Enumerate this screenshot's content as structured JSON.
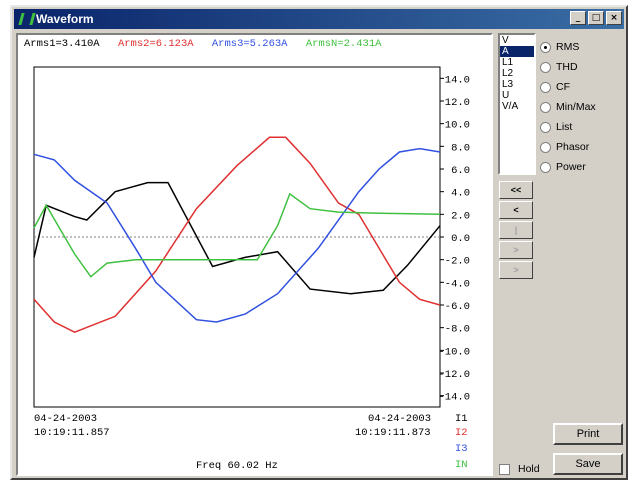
{
  "window": {
    "title": "Waveform"
  },
  "readouts": {
    "arms1": "Arms1=3.410A",
    "arms2": "Arms2=6.123A",
    "arms3": "Arms3=5.263A",
    "armsn": "ArmsN=2.431A"
  },
  "colors": {
    "i1": "#000000",
    "i2": "#e03030",
    "i3": "#3050e0",
    "in": "#40c040",
    "zero": "#808080"
  },
  "chart_data": {
    "type": "line",
    "ylim": [
      -15,
      15
    ],
    "yticks": [
      14,
      12,
      10,
      8,
      6,
      4,
      2,
      0,
      -2,
      -4,
      -6,
      -8,
      -10,
      -12,
      -14
    ],
    "ytick_labels": [
      "14.0",
      "12.0",
      "10.0",
      "8.0",
      "6.0",
      "4.0",
      "2.0",
      "0.0",
      "-2.0",
      "-4.0",
      "-6.0",
      "-8.0",
      "-10.0",
      "-12.0",
      "-14.0"
    ],
    "xlim": [
      0,
      100
    ],
    "series": [
      {
        "name": "I1",
        "color": "#000000",
        "x": [
          0,
          3,
          10,
          13,
          20,
          28,
          33,
          44,
          52,
          60,
          68,
          78,
          86,
          92,
          100
        ],
        "y": [
          -1.8,
          2.8,
          1.8,
          1.5,
          4.0,
          4.8,
          4.8,
          -2.6,
          -1.8,
          -1.3,
          -4.6,
          -5.0,
          -4.7,
          -2.5,
          1.0
        ]
      },
      {
        "name": "I2",
        "color": "#e03030",
        "x": [
          0,
          5,
          10,
          20,
          30,
          40,
          50,
          58,
          62,
          68,
          75,
          80,
          85,
          90,
          95,
          100
        ],
        "y": [
          -5.5,
          -7.5,
          -8.4,
          -7.0,
          -3.0,
          2.5,
          6.3,
          8.8,
          8.8,
          6.5,
          3.0,
          2.0,
          -1.0,
          -4.0,
          -5.5,
          -6.0
        ]
      },
      {
        "name": "I3",
        "color": "#3050e0",
        "x": [
          0,
          5,
          10,
          18,
          25,
          30,
          40,
          45,
          52,
          60,
          70,
          80,
          85,
          90,
          95,
          100
        ],
        "y": [
          7.3,
          6.8,
          5.0,
          3.0,
          -1.0,
          -4.0,
          -7.3,
          -7.5,
          -6.8,
          -5.0,
          -1.0,
          4.0,
          6.0,
          7.5,
          7.8,
          7.5
        ]
      },
      {
        "name": "IN",
        "color": "#40c040",
        "x": [
          0,
          3,
          10,
          14,
          18,
          25,
          40,
          50,
          55,
          60,
          63,
          68,
          75,
          85,
          100
        ],
        "y": [
          0.8,
          2.8,
          -1.5,
          -3.5,
          -2.3,
          -2.0,
          -2.0,
          -2.0,
          -2.0,
          1.0,
          3.8,
          2.5,
          2.2,
          2.1,
          2.0
        ]
      }
    ]
  },
  "footer": {
    "left_date": "04-24-2003",
    "left_time": "10:19:11.857",
    "right_date": "04-24-2003",
    "right_time": "10:19:11.873",
    "freq": "Freq 60.02 Hz",
    "legend": [
      "I1",
      "I2",
      "I3",
      "IN"
    ]
  },
  "channels": [
    "V",
    "A",
    "L1",
    "L2",
    "L3",
    "U",
    "V/A"
  ],
  "selected_channel": "A",
  "modes": [
    {
      "label": "RMS",
      "checked": true
    },
    {
      "label": "THD",
      "checked": false
    },
    {
      "label": "CF",
      "checked": false
    },
    {
      "label": "Min/Max",
      "checked": false
    },
    {
      "label": "List",
      "checked": false
    },
    {
      "label": "Phasor",
      "checked": false
    },
    {
      "label": "Power",
      "checked": false
    }
  ],
  "nav_buttons": [
    "<<",
    "<",
    "|",
    ">",
    ">"
  ],
  "hold_label": "Hold",
  "print_label": "Print",
  "save_label": "Save"
}
